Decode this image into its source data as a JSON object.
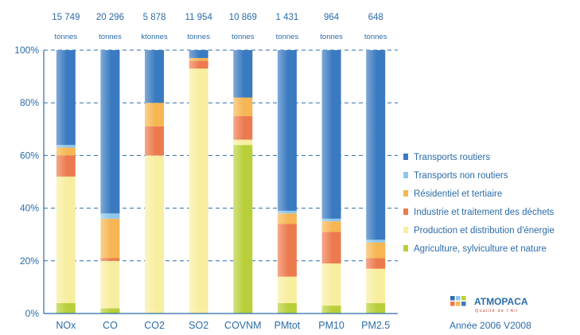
{
  "chart_data": {
    "type": "bar",
    "stacked": true,
    "normalized": true,
    "ylim": [
      0,
      100
    ],
    "y_ticks": [
      "0%",
      "20%",
      "40%",
      "60%",
      "80%",
      "100%"
    ],
    "grid": true,
    "legend_position": "right",
    "categories": [
      "NOx",
      "CO",
      "CO2",
      "SO2",
      "COVNM",
      "PMtot",
      "PM10",
      "PM2.5"
    ],
    "totals": [
      "15 749",
      "20 296",
      "5 878",
      "11 954",
      "10 869",
      "1 431",
      "964",
      "648"
    ],
    "units": [
      "tonnes",
      "tonnes",
      "ktonnes",
      "tonnes",
      "tonnes",
      "tonnes",
      "tonnes",
      "tonnes"
    ],
    "series": [
      {
        "name": "Agriculture, sylviculture et nature",
        "color": "#b9cf3a",
        "values": [
          4,
          2,
          0,
          0,
          64,
          4,
          3,
          4
        ]
      },
      {
        "name": "Production et distribution d'énergie",
        "color": "#f8eea0",
        "values": [
          48,
          18,
          60,
          93,
          2,
          10,
          16,
          13
        ]
      },
      {
        "name": "Industrie et traitement des déchets",
        "color": "#ec7a4e",
        "values": [
          8,
          1,
          11,
          3,
          9,
          20,
          12,
          4
        ]
      },
      {
        "name": "Résidentiel et tertiaire",
        "color": "#f6b653",
        "values": [
          3,
          15,
          9,
          1,
          7,
          4,
          4,
          6
        ]
      },
      {
        "name": "Transports non routiers",
        "color": "#8ec6ea",
        "values": [
          1,
          2,
          0,
          0,
          0,
          1,
          1,
          1
        ]
      },
      {
        "name": "Transports routiers",
        "color": "#3a7ac0",
        "values": [
          36,
          62,
          20,
          3,
          18,
          61,
          64,
          72
        ]
      }
    ],
    "legend_order": [
      "Transports routiers",
      "Transports non routiers",
      "Résidentiel et tertiaire",
      "Industrie et traitement des déchets",
      "Production et distribution d'énergie",
      "Agriculture, sylviculture et nature"
    ]
  },
  "logo": {
    "name": "ATMOPACA",
    "tagline": "Qualité de l'Air"
  },
  "footer": {
    "year_text": "Année 2006 V2008"
  }
}
